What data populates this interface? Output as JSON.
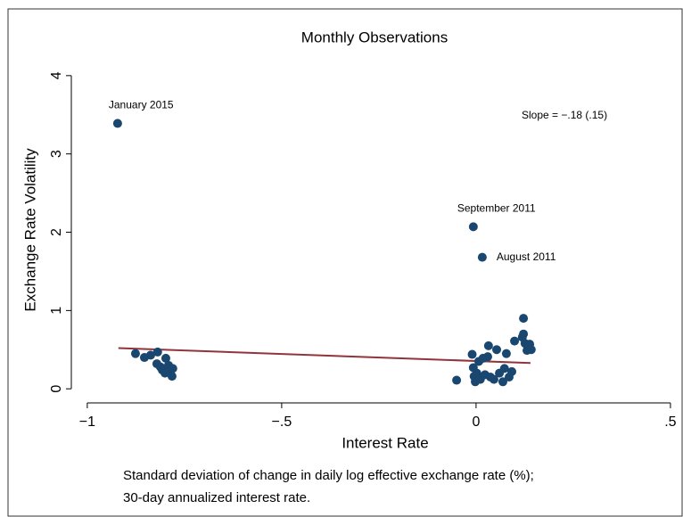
{
  "chart_data": {
    "type": "scatter",
    "title": "Monthly Observations",
    "x_label": "Interest Rate",
    "y_label": "Exchange Rate Volatility",
    "annotation": "Slope = −.18 (.15)",
    "caption": [
      "Standard deviation of change in daily log effective exchange rate (%);",
      "30-day annualized interest rate."
    ],
    "xlim": [
      -1.041,
      0.53
    ],
    "ylim": [
      -0.18,
      4.26
    ],
    "xticks": [
      {
        "value": -1,
        "label": "−1"
      },
      {
        "value": -0.5,
        "label": "−.5"
      },
      0,
      {
        "value": 0.5,
        "label": ".5"
      }
    ],
    "yticks": [
      0,
      1,
      2,
      3,
      4
    ],
    "grid": false,
    "series": [
      {
        "color": "#1a476f",
        "x": [
          -0.922,
          -0.007,
          0.016,
          -0.876,
          -0.853,
          -0.837,
          -0.819,
          -0.821,
          -0.798,
          -0.807,
          -0.791,
          -0.78,
          -0.787,
          -0.782,
          -0.8,
          -0.812,
          -0.05,
          -0.01,
          -0.007,
          -0.005,
          -0.002,
          0.002,
          0.007,
          0.011,
          0.018,
          0.023,
          0.03,
          0.032,
          0.037,
          0.046,
          0.053,
          0.06,
          0.069,
          0.073,
          0.078,
          0.085,
          0.092,
          0.122,
          0.099,
          0.119,
          0.126,
          0.131,
          0.138,
          0.142,
          0.122
        ],
        "y": [
          3.39,
          2.07,
          1.68,
          0.45,
          0.4,
          0.43,
          0.47,
          0.32,
          0.39,
          0.24,
          0.3,
          0.26,
          0.2,
          0.16,
          0.2,
          0.28,
          0.11,
          0.44,
          0.27,
          0.16,
          0.09,
          0.2,
          0.35,
          0.12,
          0.39,
          0.18,
          0.41,
          0.55,
          0.15,
          0.12,
          0.5,
          0.2,
          0.09,
          0.26,
          0.45,
          0.15,
          0.22,
          0.9,
          0.61,
          0.66,
          0.58,
          0.49,
          0.57,
          0.5,
          0.7
        ],
        "labels": [
          "January 2015",
          "September 2011",
          "August 2011",
          null,
          null,
          null,
          null,
          null,
          null,
          null,
          null,
          null,
          null,
          null,
          null,
          null,
          null,
          null,
          null,
          null,
          null,
          null,
          null,
          null,
          null,
          null,
          null,
          null,
          null,
          null,
          null,
          null,
          null,
          null,
          null,
          null,
          null,
          null,
          null,
          null,
          null,
          null,
          null,
          null,
          null
        ]
      }
    ],
    "fit_line": {
      "color": "#90353b",
      "x": [
        -0.92,
        0.14
      ],
      "y": [
        0.52,
        0.33
      ]
    }
  }
}
